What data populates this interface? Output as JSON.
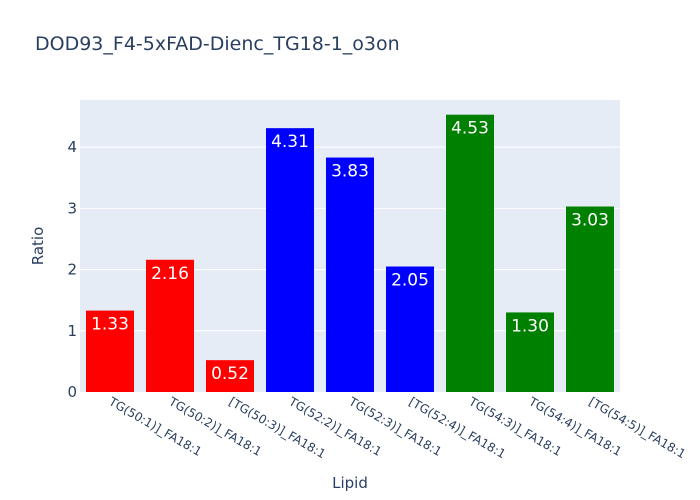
{
  "chart_data": {
    "type": "bar",
    "title": "DOD93_F4-5xFAD-Dienc_TG18-1_o3on",
    "xlabel": "Lipid",
    "ylabel": "Ratio",
    "categories": [
      "TG(50:1)]_FA18:1",
      "TG(50:2)]_FA18:1",
      "[TG(50:3)]_FA18:1",
      "TG(52:2)]_FA18:1",
      "TG(52:3)]_FA18:1",
      "[TG(52:4)]_FA18:1",
      "TG(54:3)]_FA18:1",
      "TG(54:4)]_FA18:1",
      "[TG(54:5)]_FA18:1"
    ],
    "values": [
      1.33,
      2.16,
      0.52,
      4.31,
      3.83,
      2.05,
      4.53,
      1.3,
      3.03
    ],
    "labels": [
      "1.33",
      "2.16",
      "0.52",
      "4.31",
      "3.83",
      "2.05",
      "4.53",
      "1.30",
      "3.03"
    ],
    "colors": [
      "#ff0000",
      "#ff0000",
      "#ff0000",
      "#0000ff",
      "#0000ff",
      "#0000ff",
      "#008000",
      "#008000",
      "#008000"
    ],
    "ylim": [
      0,
      4.77
    ],
    "yticks": [
      0,
      1,
      2,
      3,
      4
    ],
    "grid": true,
    "legend": "none",
    "background": "#e5ecf6"
  }
}
